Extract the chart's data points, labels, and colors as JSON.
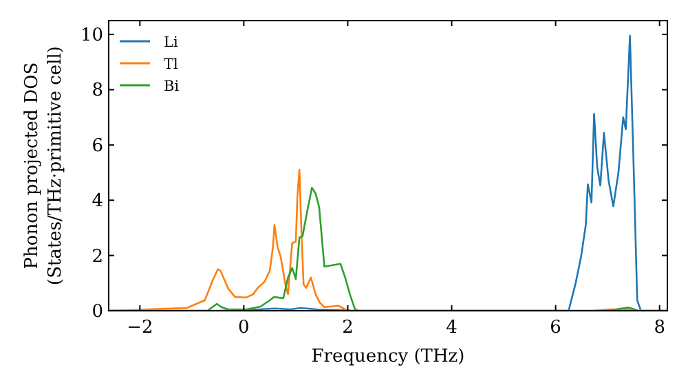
{
  "chart_data": {
    "type": "line",
    "xlabel": "Frequency (THz)",
    "ylabel": "Phonon projected DOS\n(States/THz·primitive cell)",
    "xlim": [
      -2.6,
      8.15
    ],
    "ylim": [
      0,
      10.5
    ],
    "xticks": [
      -2,
      0,
      2,
      4,
      6,
      8
    ],
    "yticks": [
      0,
      2,
      4,
      6,
      8,
      10
    ],
    "grid": false,
    "legend": "top left",
    "marker": "none",
    "line_style": "solid",
    "series": [
      {
        "name": "Li",
        "color": "#1f77b4",
        "x": [
          -2.6,
          -0.5,
          0,
          0.3,
          0.6,
          0.9,
          1.1,
          1.4,
          1.8,
          2.1,
          6.25,
          6.38,
          6.49,
          6.58,
          6.62,
          6.69,
          6.74,
          6.8,
          6.86,
          6.93,
          7.02,
          7.11,
          7.21,
          7.3,
          7.35,
          7.43,
          7.5,
          7.57,
          7.64,
          8.15
        ],
        "values": [
          0,
          0,
          0.03,
          0.05,
          0.08,
          0.05,
          0.1,
          0.05,
          0.03,
          0,
          0,
          0.96,
          1.96,
          3.1,
          4.58,
          3.92,
          7.13,
          5.2,
          4.53,
          6.44,
          4.7,
          3.78,
          5.02,
          7.0,
          6.57,
          9.95,
          5.3,
          0.38,
          0,
          0
        ]
      },
      {
        "name": "Tl",
        "color": "#ff7f0e",
        "x": [
          -2.6,
          -1.1,
          -0.75,
          -0.6,
          -0.5,
          -0.45,
          -0.3,
          -0.17,
          0.05,
          0.18,
          0.27,
          0.4,
          0.5,
          0.56,
          0.59,
          0.65,
          0.71,
          0.8,
          0.85,
          0.93,
          1.0,
          1.03,
          1.07,
          1.11,
          1.15,
          1.2,
          1.29,
          1.33,
          1.38,
          1.46,
          1.55,
          1.82,
          1.95,
          2.08,
          6.7,
          7.0,
          7.4,
          7.6,
          8.15
        ],
        "values": [
          0,
          0.1,
          0.38,
          1.1,
          1.5,
          1.45,
          0.8,
          0.5,
          0.48,
          0.6,
          0.83,
          1.05,
          1.45,
          2.3,
          3.1,
          2.3,
          1.95,
          0.95,
          0.6,
          2.45,
          2.5,
          4.1,
          5.1,
          2.8,
          0.95,
          0.83,
          1.2,
          0.95,
          0.6,
          0.3,
          0.13,
          0.18,
          0.05,
          0,
          0,
          0.05,
          0.05,
          0,
          0
        ]
      },
      {
        "name": "Bi",
        "color": "#2ca02c",
        "x": [
          -2.6,
          -0.7,
          -0.52,
          -0.43,
          -0.3,
          0.05,
          0.32,
          0.5,
          0.58,
          0.76,
          0.85,
          0.93,
          1.0,
          1.07,
          1.13,
          1.22,
          1.31,
          1.38,
          1.45,
          1.55,
          1.86,
          1.95,
          2.04,
          2.14,
          2.21,
          7.0,
          7.4,
          7.6,
          8.15
        ],
        "values": [
          0,
          0,
          0.25,
          0.13,
          0.05,
          0.05,
          0.15,
          0.38,
          0.5,
          0.45,
          1.2,
          1.55,
          1.15,
          2.65,
          2.7,
          3.6,
          4.45,
          4.25,
          3.75,
          1.6,
          1.7,
          1.2,
          0.6,
          0.05,
          0,
          0,
          0.12,
          0,
          0
        ]
      }
    ]
  }
}
